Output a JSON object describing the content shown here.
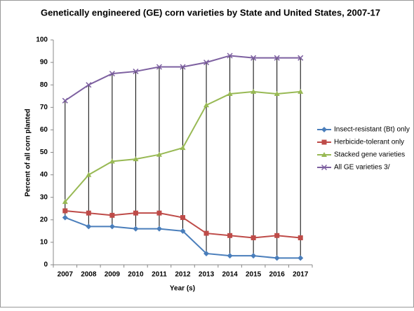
{
  "chart_data": {
    "type": "line",
    "title": "Genetically engineered (GE) corn varieties by State and United States, 2007-17",
    "x_label": "Year (s)",
    "y_label": "Percent of all corn planted",
    "categories": [
      "2007",
      "2008",
      "2009",
      "2010",
      "2011",
      "2012",
      "2013",
      "2014",
      "2015",
      "2016",
      "2017"
    ],
    "series": [
      {
        "name": "Insect-resistant (Bt) only",
        "color": "#4a7ebb",
        "marker": "diamond",
        "values": [
          21,
          17,
          17,
          16,
          16,
          15,
          5,
          4,
          4,
          3,
          3
        ]
      },
      {
        "name": "Herbicide-tolerant only",
        "color": "#be4b48",
        "marker": "square",
        "values": [
          24,
          23,
          22,
          23,
          23,
          21,
          14,
          13,
          12,
          13,
          12
        ]
      },
      {
        "name": "Stacked gene varieties",
        "color": "#98b954",
        "marker": "triangle",
        "values": [
          28,
          40,
          46,
          47,
          49,
          52,
          71,
          76,
          77,
          76,
          77
        ]
      },
      {
        "name": "All GE varieties 3/",
        "color": "#7d60a0",
        "marker": "x",
        "values": [
          73,
          80,
          85,
          86,
          88,
          88,
          90,
          93,
          92,
          92,
          92
        ]
      }
    ],
    "ylim": [
      0,
      100
    ],
    "yticks": [
      0,
      10,
      20,
      30,
      40,
      50,
      60,
      70,
      80,
      90,
      100
    ],
    "high_low_lines": true
  }
}
